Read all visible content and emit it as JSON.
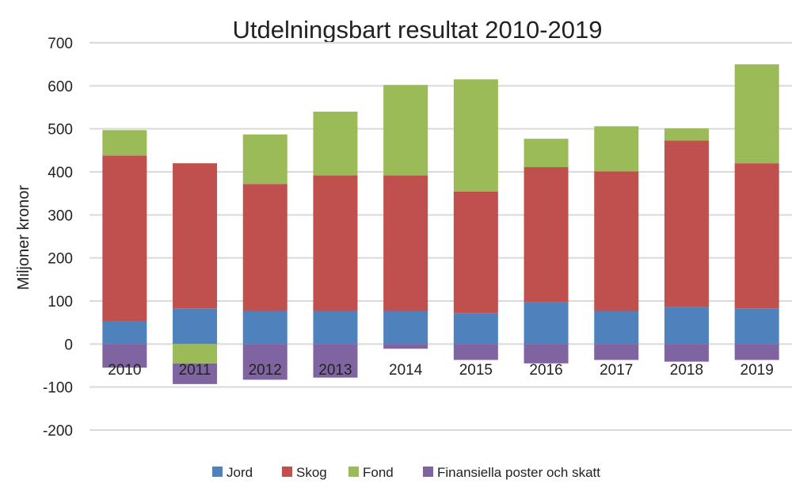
{
  "chart_data": {
    "type": "bar",
    "stacked": true,
    "title": "Utdelningsbart resultat 2010-2019",
    "xlabel": "",
    "ylabel": "Miljoner kronor",
    "ylim": [
      -200,
      700
    ],
    "yticks": [
      -200,
      -100,
      0,
      100,
      200,
      300,
      400,
      500,
      600,
      700
    ],
    "grid": true,
    "legend_position": "bottom",
    "categories": [
      "2010",
      "2011",
      "2012",
      "2013",
      "2014",
      "2015",
      "2016",
      "2017",
      "2018",
      "2019"
    ],
    "series": [
      {
        "name": "Jord",
        "color": "#4f81bd",
        "values": [
          53,
          83,
          77,
          77,
          77,
          72,
          98,
          77,
          87,
          83
        ]
      },
      {
        "name": "Skog",
        "color": "#c0504d",
        "values": [
          385,
          337,
          295,
          315,
          315,
          282,
          313,
          324,
          386,
          337
        ]
      },
      {
        "name": "Fond",
        "color": "#9bbb59",
        "values": [
          59,
          -45,
          115,
          148,
          210,
          261,
          66,
          105,
          28,
          230
        ]
      },
      {
        "name": "Finansiella poster och skatt",
        "color": "#8064a2",
        "values": [
          -55,
          -48,
          -83,
          -78,
          -11,
          -37,
          -45,
          -37,
          -41,
          -37
        ]
      }
    ]
  }
}
